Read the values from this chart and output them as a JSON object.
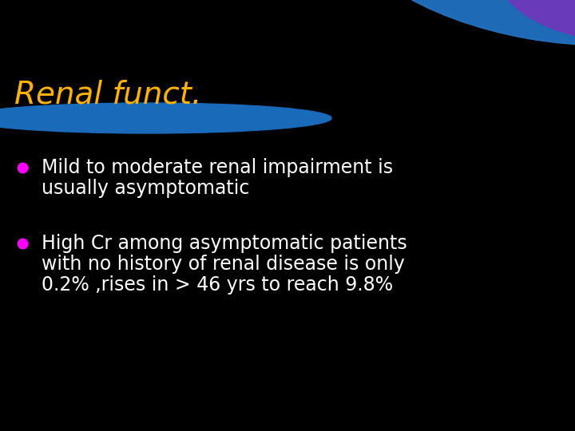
{
  "title": "Renal funct.",
  "title_color": "#FFB300",
  "title_style": "italic",
  "title_fontsize": 28,
  "background_color": "#000000",
  "bullet_color": "#FF00FF",
  "bullet_text_color": "#FFFFFF",
  "bullet_fontsize": 17,
  "bullets": [
    [
      "Mild to moderate renal impairment is",
      "usually asymptomatic"
    ],
    [
      "High Cr among asymptomatic patients",
      "with no history of renal disease is only",
      "0.2% ,rises in > 46 yrs to reach 9.8%"
    ]
  ],
  "header_ellipse_color": "#1a6aba",
  "top_arc_blue": "#2277cc",
  "top_arc_purple": "#7733bb"
}
